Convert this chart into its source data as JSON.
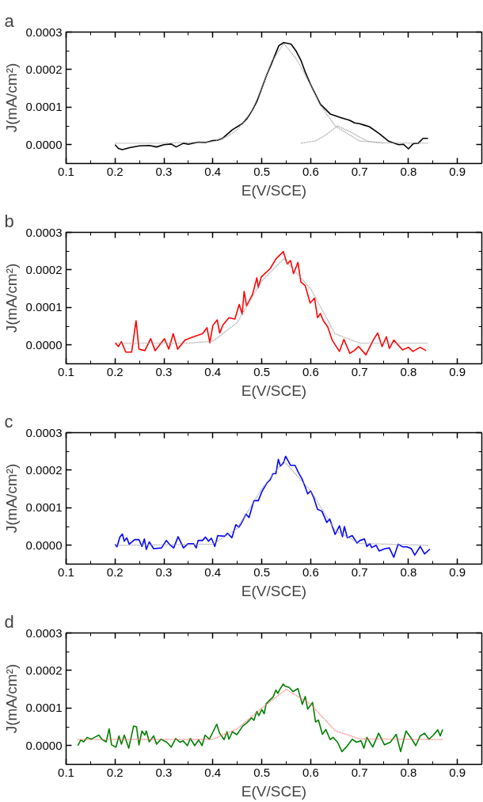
{
  "chart_data": [
    {
      "type": "line",
      "title": "a",
      "xlabel": "E(V/SCE)",
      "ylabel": "J(mA/cm²)",
      "xlim": [
        0.1,
        0.95
      ],
      "xticks": [
        0.1,
        0.2,
        0.3,
        0.4,
        0.5,
        0.6,
        0.7,
        0.8,
        0.9
      ],
      "ylim": [
        -5e-05,
        0.0003
      ],
      "yticks": [
        {
          "value": 0,
          "label": "0.0000"
        },
        {
          "value": 0.0001,
          "label": "0.0001"
        },
        {
          "value": 0.0002,
          "label": "0.0002"
        },
        {
          "value": 0.0003,
          "label": "0.0003"
        }
      ],
      "grid": false,
      "series": [
        {
          "color": "#999999",
          "line_style": "dotted",
          "x": [
            0.2,
            0.3,
            0.4,
            0.43,
            0.45,
            0.48,
            0.5,
            0.52,
            0.545,
            0.57,
            0.6,
            0.62,
            0.65,
            0.7,
            0.75,
            0.84
          ],
          "values": [
            4e-06,
            4e-06,
            8e-06,
            2.2e-05,
            4e-05,
            9e-05,
            0.00015,
            0.00022,
            0.00027,
            0.00023,
            0.00016,
            0.000105,
            5e-05,
            1e-05,
            5e-06,
            4e-06
          ]
        },
        {
          "color": "#999999",
          "line_style": "dotted",
          "x": [
            0.58,
            0.61,
            0.63,
            0.655,
            0.68,
            0.7,
            0.72,
            0.75
          ],
          "values": [
            4e-06,
            1e-05,
            2.5e-05,
            5e-05,
            3.5e-05,
            2e-05,
            8e-06,
            4e-06
          ]
        },
        {
          "color": "#000000",
          "line_style": "solid",
          "x": [
            0.2,
            0.207,
            0.215,
            0.23,
            0.25,
            0.27,
            0.285,
            0.3,
            0.315,
            0.325,
            0.34,
            0.35,
            0.37,
            0.385,
            0.4,
            0.41,
            0.42,
            0.44,
            0.46,
            0.47,
            0.48,
            0.49,
            0.5,
            0.51,
            0.52,
            0.535,
            0.545,
            0.56,
            0.57,
            0.58,
            0.59,
            0.6,
            0.62,
            0.64,
            0.66,
            0.68,
            0.69,
            0.7,
            0.71,
            0.72,
            0.74,
            0.76,
            0.78,
            0.79,
            0.8,
            0.81,
            0.82,
            0.83,
            0.84
          ],
          "values": [
            0,
            -1e-05,
            -1.3e-05,
            -8e-06,
            -3e-06,
            -2e-06,
            -6e-06,
            0,
            2e-06,
            -6e-06,
            4e-06,
            1e-06,
            7e-06,
            6e-06,
            1.1e-05,
            1.2e-05,
            1.7e-05,
            4e-05,
            5.6e-05,
            7e-05,
            9e-05,
            0.000115,
            0.00015,
            0.000185,
            0.000216,
            0.000264,
            0.000272,
            0.000268,
            0.00025,
            0.000225,
            0.00019,
            0.00016,
            0.000108,
            8.2e-05,
            7.3e-05,
            6.5e-05,
            5.8e-05,
            5.6e-05,
            5.2e-05,
            4.8e-05,
            3e-05,
            9e-06,
            0,
            1e-06,
            -1.1e-05,
            3e-06,
            4e-06,
            1.7e-05,
            1.7e-05
          ]
        }
      ]
    },
    {
      "type": "line",
      "title": "b",
      "xlabel": "E(V/SCE)",
      "ylabel": "J(mA/cm²)",
      "xlim": [
        0.1,
        0.95
      ],
      "xticks": [
        0.1,
        0.2,
        0.3,
        0.4,
        0.5,
        0.6,
        0.7,
        0.8,
        0.9
      ],
      "ylim": [
        -5e-05,
        0.0003
      ],
      "yticks": [
        {
          "value": 0,
          "label": "0.0000"
        },
        {
          "value": 0.0001,
          "label": "0.0001"
        },
        {
          "value": 0.0002,
          "label": "0.0002"
        },
        {
          "value": 0.0003,
          "label": "0.0003"
        }
      ],
      "grid": false,
      "series": [
        {
          "color": "#999999",
          "line_style": "dotted",
          "x": [
            0.2,
            0.35,
            0.4,
            0.45,
            0.5,
            0.545,
            0.6,
            0.65,
            0.7,
            0.84
          ],
          "values": [
            5e-06,
            5e-06,
            1e-05,
            6e-05,
            0.00017,
            0.00023,
            0.00015,
            3e-05,
            5e-06,
            5e-06
          ]
        },
        {
          "color": "#ff0000",
          "line_style": "solid",
          "x": [
            0.2,
            0.207,
            0.213,
            0.222,
            0.234,
            0.243,
            0.249,
            0.261,
            0.273,
            0.282,
            0.301,
            0.31,
            0.319,
            0.328,
            0.343,
            0.361,
            0.379,
            0.388,
            0.394,
            0.4,
            0.409,
            0.414,
            0.421,
            0.433,
            0.445,
            0.454,
            0.46,
            0.464,
            0.469,
            0.481,
            0.49,
            0.493,
            0.499,
            0.517,
            0.529,
            0.544,
            0.552,
            0.559,
            0.565,
            0.574,
            0.58,
            0.589,
            0.599,
            0.608,
            0.614,
            0.62,
            0.626,
            0.635,
            0.644,
            0.659,
            0.668,
            0.68,
            0.689,
            0.698,
            0.713,
            0.728,
            0.737,
            0.746,
            0.755,
            0.761,
            0.77,
            0.788,
            0.8,
            0.809,
            0.824,
            0.836
          ],
          "values": [
            6e-06,
            -4e-06,
            9e-06,
            -1.9e-05,
            -1.9e-05,
            6.5e-05,
            -1.1e-05,
            -1.5e-05,
            1.7e-05,
            -1.5e-05,
            1.7e-05,
            -1.1e-05,
            3e-05,
            -1.1e-05,
            1.3e-05,
            2.2e-05,
            3e-05,
            4.6e-05,
            6e-06,
            5.2e-05,
            6.7e-05,
            3.2e-05,
            5.4e-05,
            7.3e-05,
            6.9e-05,
            0.000108,
            8.2e-05,
            0.000143,
            0.000104,
            0.000134,
            0.000179,
            0.000153,
            0.000181,
            0.000203,
            0.000229,
            0.000249,
            0.000216,
            0.000225,
            0.00019,
            0.00022,
            0.000168,
            0.000158,
            0.000112,
            0.000125,
            7.3e-05,
            8.4e-05,
            6.5e-05,
            4.8e-05,
            1.3e-05,
            -1.7e-05,
            1.5e-05,
            -2.2e-05,
            -1.5e-05,
            -4e-06,
            -2.6e-05,
            1.3e-05,
            3.2e-05,
            -4e-06,
            2.2e-05,
            -9e-06,
            1.3e-05,
            -1.3e-05,
            -6e-06,
            -1.7e-05,
            -6e-06,
            -1.5e-05
          ]
        }
      ]
    },
    {
      "type": "line",
      "title": "c",
      "xlabel": "E(V/SCE)",
      "ylabel": "J(mA/cm²)",
      "xlim": [
        0.1,
        0.95
      ],
      "xticks": [
        0.1,
        0.2,
        0.3,
        0.4,
        0.5,
        0.6,
        0.7,
        0.8,
        0.9
      ],
      "ylim": [
        -5e-05,
        0.0003
      ],
      "yticks": [
        {
          "value": 0,
          "label": "0.0000"
        },
        {
          "value": 0.0001,
          "label": "0.0001"
        },
        {
          "value": 0.0002,
          "label": "0.0002"
        },
        {
          "value": 0.0003,
          "label": "0.0003"
        }
      ],
      "grid": false,
      "series": [
        {
          "color": "#999999",
          "line_style": "dotted",
          "x": [
            0.2,
            0.4,
            0.45,
            0.5,
            0.545,
            0.6,
            0.65,
            0.7,
            0.84
          ],
          "values": [
            0,
            3e-06,
            4.5e-05,
            0.00015,
            0.000225,
            0.000145,
            4e-05,
            5e-06,
            0
          ]
        },
        {
          "color": "#0000ff",
          "line_style": "solid",
          "x": [
            0.2,
            0.204,
            0.21,
            0.215,
            0.219,
            0.224,
            0.229,
            0.24,
            0.249,
            0.255,
            0.26,
            0.264,
            0.27,
            0.279,
            0.295,
            0.305,
            0.311,
            0.32,
            0.329,
            0.34,
            0.349,
            0.361,
            0.366,
            0.37,
            0.379,
            0.385,
            0.391,
            0.397,
            0.404,
            0.41,
            0.424,
            0.43,
            0.439,
            0.447,
            0.453,
            0.458,
            0.468,
            0.474,
            0.484,
            0.493,
            0.5,
            0.51,
            0.517,
            0.523,
            0.529,
            0.534,
            0.538,
            0.544,
            0.549,
            0.559,
            0.568,
            0.576,
            0.582,
            0.589,
            0.594,
            0.6,
            0.606,
            0.614,
            0.623,
            0.633,
            0.639,
            0.65,
            0.659,
            0.665,
            0.669,
            0.675,
            0.685,
            0.695,
            0.701,
            0.71,
            0.715,
            0.721,
            0.725,
            0.734,
            0.74,
            0.752,
            0.761,
            0.77,
            0.779,
            0.788,
            0.797,
            0.806,
            0.813,
            0.824,
            0.833,
            0.844
          ],
          "values": [
            3e-06,
            -4e-06,
            2.2e-05,
            3e-05,
            1.1e-05,
            2e-05,
            3e-06,
            1.5e-05,
            1.5e-05,
            -3e-06,
            1.7e-05,
            -1.1e-05,
            9e-06,
            -9e-06,
            -7e-06,
            1.3e-05,
            3e-06,
            -7e-06,
            2.3e-05,
            -7e-06,
            4e-06,
            4e-06,
            -7e-06,
            1.3e-05,
            1.3e-05,
            2.2e-05,
            1.1e-05,
            1.9e-05,
            -3e-06,
            2.6e-05,
            2.4e-05,
            3.2e-05,
            2e-05,
            5.5e-05,
            4.8e-05,
            5.8e-05,
            8.3e-05,
            7.4e-05,
            0.000119,
            0.000119,
            0.000142,
            0.000165,
            0.000174,
            0.000191,
            0.000191,
            0.000229,
            0.000211,
            0.000219,
            0.000237,
            0.000213,
            0.000213,
            0.000191,
            0.000178,
            0.000155,
            0.000137,
            0.000145,
            0.000128,
            9.6e-05,
            9.1e-05,
            6.1e-05,
            7e-05,
            2.9e-05,
            5.2e-05,
            2.3e-05,
            5e-05,
            2e-05,
            2.6e-05,
            6e-06,
            1.3e-05,
            1.7e-05,
            -3e-06,
            4e-06,
            -6e-06,
            0,
            -1.5e-05,
            -9e-06,
            -7e-06,
            -3.2e-05,
            3e-06,
            -4e-06,
            -4e-06,
            -9e-06,
            -2.6e-05,
            -3e-06,
            -2.3e-05,
            -1e-05
          ]
        }
      ]
    },
    {
      "type": "line",
      "title": "d",
      "xlabel": "E(V/SCE)",
      "ylabel": "J(mA/cm²)",
      "xlim": [
        0.1,
        0.95
      ],
      "xticks": [
        0.1,
        0.2,
        0.3,
        0.4,
        0.5,
        0.6,
        0.7,
        0.8,
        0.9
      ],
      "ylim": [
        -5e-05,
        0.0003
      ],
      "yticks": [
        {
          "value": 0,
          "label": "0.0000"
        },
        {
          "value": 0.0001,
          "label": "0.0001"
        },
        {
          "value": 0.0002,
          "label": "0.0002"
        },
        {
          "value": 0.0003,
          "label": "0.0003"
        }
      ],
      "grid": false,
      "series": [
        {
          "color": "#ff6666",
          "line_style": "dotted",
          "x": [
            0.124,
            0.4,
            0.45,
            0.5,
            0.55,
            0.6,
            0.65,
            0.7,
            0.87
          ],
          "values": [
            1.6e-05,
            1.7e-05,
            4.5e-05,
            0.0001,
            0.00015,
            0.00011,
            4e-05,
            1.8e-05,
            1.6e-05
          ]
        },
        {
          "color": "#008000",
          "line_style": "solid",
          "x": [
            0.124,
            0.13,
            0.136,
            0.143,
            0.151,
            0.158,
            0.167,
            0.173,
            0.182,
            0.188,
            0.193,
            0.202,
            0.208,
            0.213,
            0.219,
            0.228,
            0.238,
            0.244,
            0.249,
            0.255,
            0.261,
            0.264,
            0.27,
            0.279,
            0.285,
            0.294,
            0.306,
            0.315,
            0.324,
            0.333,
            0.339,
            0.348,
            0.354,
            0.363,
            0.371,
            0.378,
            0.384,
            0.393,
            0.408,
            0.414,
            0.423,
            0.429,
            0.433,
            0.44,
            0.449,
            0.461,
            0.47,
            0.479,
            0.484,
            0.49,
            0.494,
            0.5,
            0.505,
            0.509,
            0.517,
            0.523,
            0.529,
            0.533,
            0.538,
            0.544,
            0.548,
            0.556,
            0.564,
            0.574,
            0.583,
            0.589,
            0.594,
            0.604,
            0.61,
            0.616,
            0.624,
            0.631,
            0.64,
            0.646,
            0.655,
            0.664,
            0.673,
            0.685,
            0.694,
            0.703,
            0.709,
            0.715,
            0.727,
            0.739,
            0.751,
            0.763,
            0.775,
            0.784,
            0.795,
            0.806,
            0.815,
            0.824,
            0.833,
            0.842,
            0.851,
            0.86,
            0.865,
            0.87
          ],
          "values": [
            0,
            1.5e-05,
            1e-05,
            2.2e-05,
            1.7e-05,
            2.2e-05,
            2.8e-05,
            1.7e-05,
            1e-05,
            4.5e-05,
            2e-06,
            -4e-06,
            2.6e-05,
            4e-06,
            2.8e-05,
            -7e-06,
            5.2e-05,
            5e-05,
            2e-06,
            3.9e-05,
            2.8e-05,
            3.9e-05,
            1e-05,
            2.6e-05,
            4e-06,
            1.7e-05,
            9e-06,
            -4e-06,
            1.9e-05,
            9e-06,
            1.3e-05,
            0,
            1.9e-05,
            0,
            1.5e-05,
            0,
            2.8e-05,
            1.7e-05,
            5.7e-05,
            3.3e-05,
            1.6e-05,
            3.7e-05,
            1.7e-05,
            3.7e-05,
            2.9e-05,
            5.2e-05,
            6.1e-05,
            7.4e-05,
            6.7e-05,
            9.1e-05,
            8e-05,
            9.6e-05,
            8.5e-05,
            0.000111,
            0.000122,
            0.000129,
            0.000148,
            0.000139,
            0.000152,
            0.000164,
            0.000158,
            0.000155,
            0.000144,
            0.000152,
            0.00011,
            0.000131,
            9.7e-05,
            0.000115,
            6.3e-05,
            6.8e-05,
            3e-05,
            4.3e-05,
            1.6e-05,
            2.2e-05,
            9e-06,
            -1.6e-05,
            -4e-06,
            1.7e-05,
            9e-06,
            1.3e-05,
            -7e-06,
            2.2e-05,
            -4e-06,
            3.3e-05,
            2e-06,
            9e-06,
            3e-05,
            -1.6e-05,
            3.9e-05,
            1.9e-05,
            0,
            2.6e-05,
            3.3e-05,
            1.7e-05,
            2.8e-05,
            4.2e-05,
            2.6e-05,
            4.3e-05
          ]
        }
      ]
    }
  ]
}
